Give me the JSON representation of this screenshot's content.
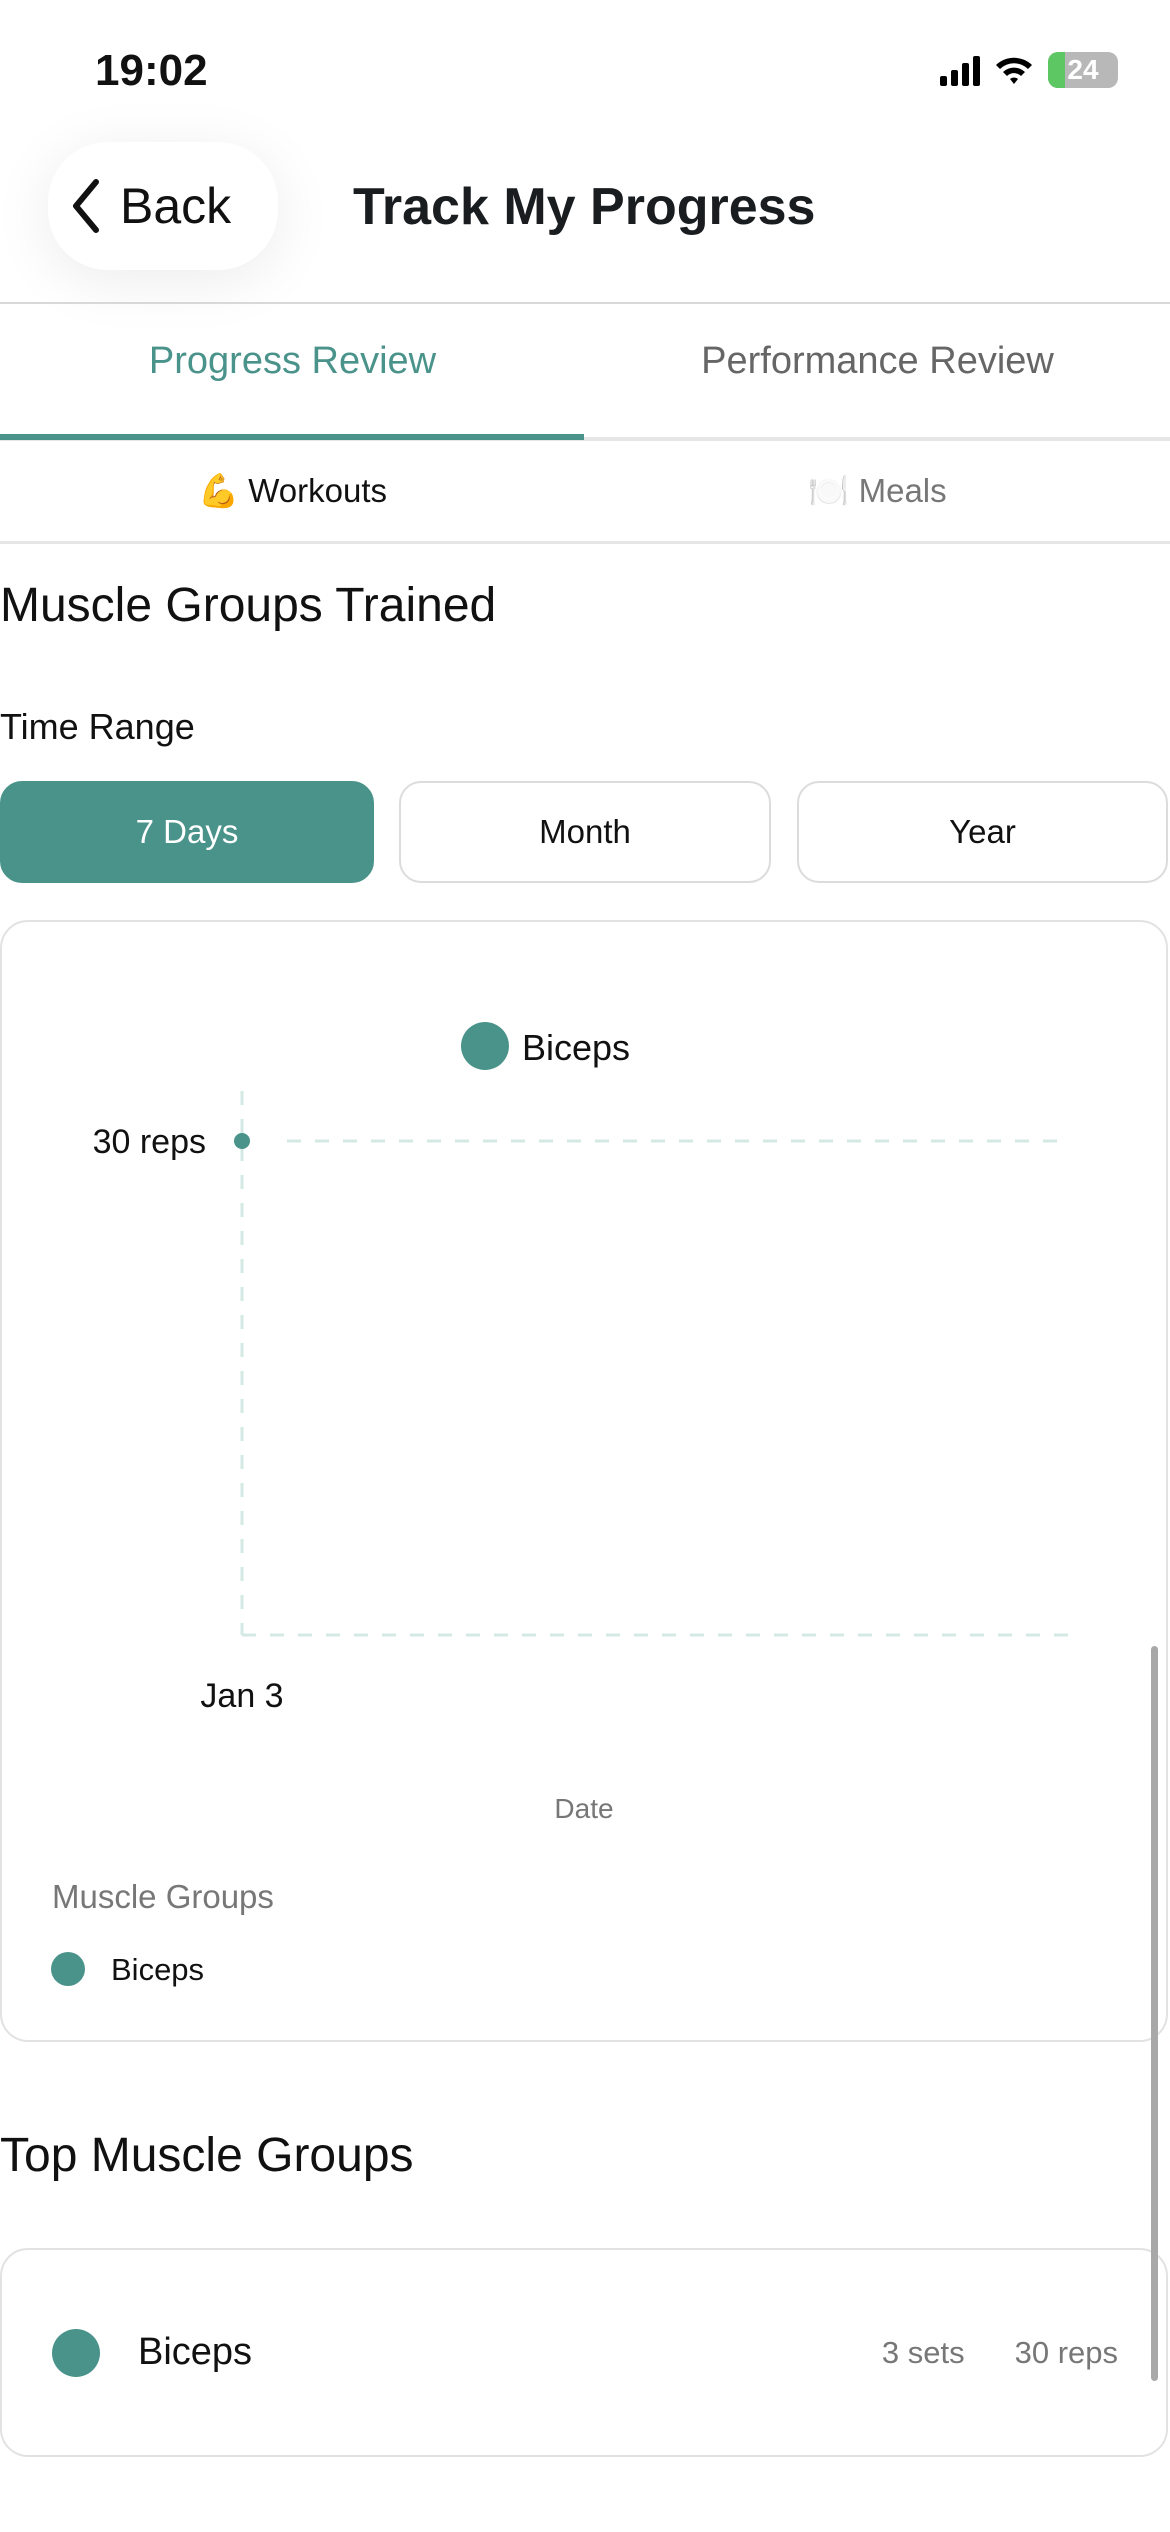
{
  "status_bar": {
    "time": "19:02",
    "battery": "24"
  },
  "header": {
    "back_label": "Back",
    "title": "Track My Progress"
  },
  "tabs": [
    {
      "label": "Progress Review",
      "active": true
    },
    {
      "label": "Performance Review",
      "active": false
    }
  ],
  "subtabs": [
    {
      "icon": "💪",
      "label": "Workouts",
      "active": true
    },
    {
      "icon": "🍽️",
      "label": "Meals",
      "active": false
    }
  ],
  "section1": {
    "title": "Muscle Groups Trained",
    "time_range_label": "Time Range",
    "ranges": [
      "7 Days",
      "Month",
      "Year"
    ],
    "selected_range": "7 Days"
  },
  "colors": {
    "accent": "#4a938a",
    "grid": "#d4e8e4"
  },
  "chart_data": {
    "type": "scatter",
    "x_ticks": [
      "Jan 3"
    ],
    "y_ticks": [
      "30 reps"
    ],
    "xlabel": "Date",
    "legend_position": "top",
    "grid": true,
    "series": [
      {
        "name": "Biceps",
        "color": "#4a938a",
        "points": [
          {
            "x": "Jan 3",
            "y": 30
          }
        ]
      }
    ],
    "legend_title": "Muscle Groups",
    "legend_items": [
      "Biceps"
    ]
  },
  "section2": {
    "title": "Top Muscle Groups",
    "items": [
      {
        "name": "Biceps",
        "sets": "3 sets",
        "reps": "30 reps",
        "color": "#4a938a"
      }
    ]
  }
}
